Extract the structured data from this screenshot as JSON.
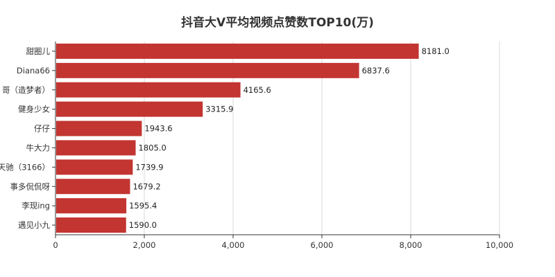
{
  "chart_data": {
    "type": "bar",
    "orientation": "horizontal",
    "title": "抖音大V平均视频点赞数TOP10(万)",
    "categories": [
      "甜圈儿",
      "Diana66",
      "哥（造梦者）",
      "健身少女",
      "仔仔",
      "牛大力",
      "天驰（3166）",
      "事多侃侃呀",
      "李现ing",
      "遇见小九"
    ],
    "values": [
      8181.0,
      6837.6,
      4165.6,
      3315.9,
      1943.6,
      1805.0,
      1739.9,
      1679.2,
      1595.4,
      1590.0
    ],
    "value_labels": [
      "8181.0",
      "6837.6",
      "4165.6",
      "3315.9",
      "1943.6",
      "1805.0",
      "1739.9",
      "1679.2",
      "1595.4",
      "1590.0"
    ],
    "x_ticks": [
      0,
      2000,
      4000,
      6000,
      8000,
      10000
    ],
    "x_tick_labels": [
      "0",
      "2,000",
      "4,000",
      "6,000",
      "8,000",
      "10,000"
    ],
    "xlim": [
      0,
      10000
    ],
    "grid": true,
    "bar_color": "#c23531"
  }
}
